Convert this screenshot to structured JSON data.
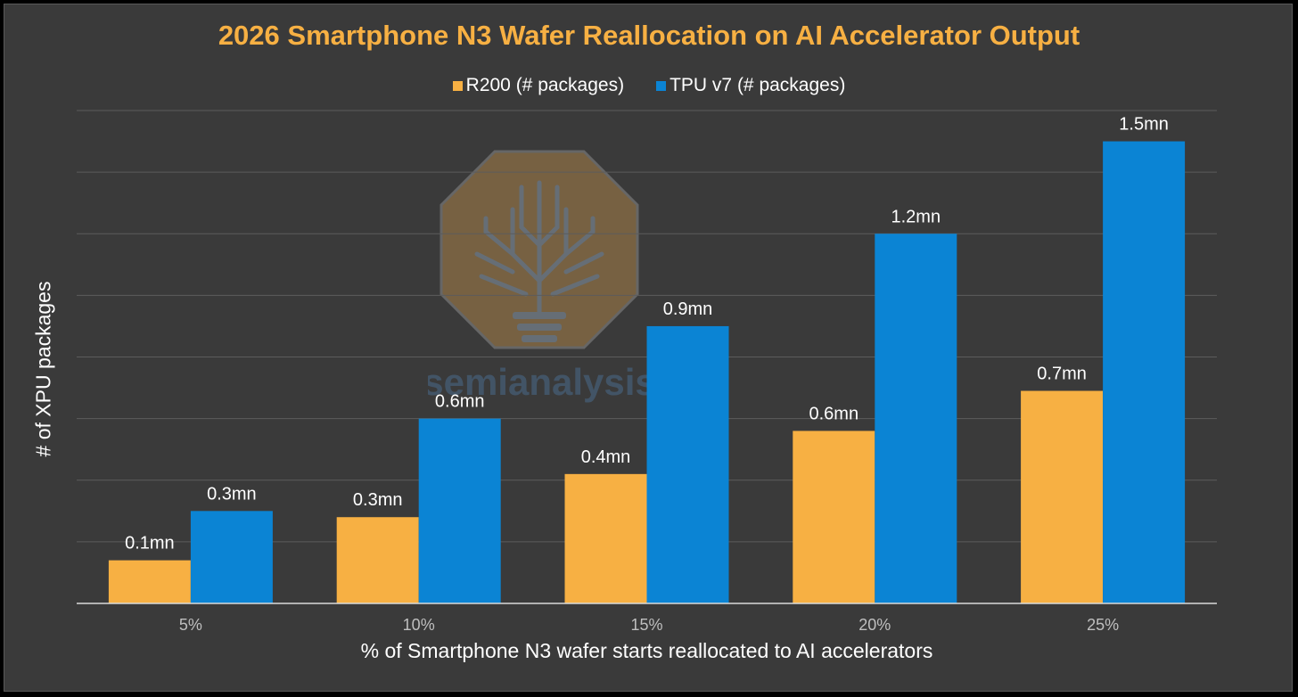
{
  "chart_data": {
    "type": "bar",
    "title": "2026 Smartphone N3 Wafer Reallocation on AI Accelerator Output",
    "xlabel": "% of Smartphone N3 wafer starts reallocated to AI accelerators",
    "ylabel": "# of XPU packages",
    "categories": [
      "5%",
      "10%",
      "15%",
      "20%",
      "25%"
    ],
    "series": [
      {
        "name": "R200 (# packages)",
        "color": "#f7b043",
        "values": [
          0.14,
          0.28,
          0.42,
          0.56,
          0.69
        ],
        "labels": [
          "0.1mn",
          "0.3mn",
          "0.4mn",
          "0.6mn",
          "0.7mn"
        ]
      },
      {
        "name": "TPU v7 (# packages)",
        "color": "#0b84d4",
        "values": [
          0.3,
          0.6,
          0.9,
          1.2,
          1.5
        ],
        "labels": [
          "0.3mn",
          "0.6mn",
          "0.9mn",
          "1.2mn",
          "1.5mn"
        ]
      }
    ],
    "ylim": [
      0,
      1.6
    ],
    "grid": true,
    "legend_position": "top-center"
  },
  "watermark": {
    "text": "semianalysis",
    "icon": "tree-lightbulb-logo-icon"
  },
  "colors": {
    "background": "#3a3a3a",
    "title": "#f7b043",
    "gridline": "#5c5c5c",
    "axis": "#d9d9d9",
    "tick_label": "#bfbfbf",
    "text": "#ffffff"
  }
}
